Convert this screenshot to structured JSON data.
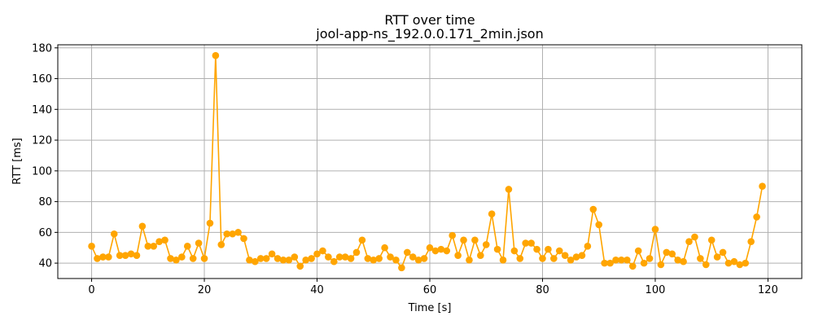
{
  "chart_data": {
    "type": "line",
    "title": "RTT over time",
    "subtitle": "jool-app-ns_192.0.0.171_2min.json",
    "xlabel": "Time [s]",
    "ylabel": "RTT [ms]",
    "xlim": [
      -6,
      126
    ],
    "ylim": [
      30,
      182
    ],
    "xticks": [
      0,
      20,
      40,
      60,
      80,
      100,
      120
    ],
    "yticks": [
      40,
      60,
      80,
      100,
      120,
      140,
      160,
      180
    ],
    "xtick_labels": [
      "0",
      "20",
      "40",
      "60",
      "80",
      "100",
      "120"
    ],
    "ytick_labels": [
      "40",
      "60",
      "80",
      "100",
      "120",
      "140",
      "160",
      "180"
    ],
    "grid": true,
    "marker": "circle",
    "series": [
      {
        "color": "#ffa500",
        "x": [
          0,
          1,
          2,
          3,
          4,
          5,
          6,
          7,
          8,
          9,
          10,
          11,
          12,
          13,
          14,
          15,
          16,
          17,
          18,
          19,
          20,
          21,
          22,
          23,
          24,
          25,
          26,
          27,
          28,
          29,
          30,
          31,
          32,
          33,
          34,
          35,
          36,
          37,
          38,
          39,
          40,
          41,
          42,
          43,
          44,
          45,
          46,
          47,
          48,
          49,
          50,
          51,
          52,
          53,
          54,
          55,
          56,
          57,
          58,
          59,
          60,
          61,
          62,
          63,
          64,
          65,
          66,
          67,
          68,
          69,
          70,
          71,
          72,
          73,
          74,
          75,
          76,
          77,
          78,
          79,
          80,
          81,
          82,
          83,
          84,
          85,
          86,
          87,
          88,
          89,
          90,
          91,
          92,
          93,
          94,
          95,
          96,
          97,
          98,
          99,
          100,
          101,
          102,
          103,
          104,
          105,
          106,
          107,
          108,
          109,
          110,
          111,
          112,
          113,
          114,
          115,
          116,
          117,
          118,
          119
        ],
        "y": [
          51,
          43,
          44,
          44,
          59,
          45,
          45,
          46,
          45,
          64,
          51,
          51,
          54,
          55,
          43,
          42,
          44,
          51,
          43,
          53,
          43,
          66,
          175,
          52,
          59,
          59,
          60,
          56,
          42,
          41,
          43,
          43,
          46,
          43,
          42,
          42,
          44,
          38,
          42,
          43,
          46,
          48,
          44,
          41,
          44,
          44,
          43,
          47,
          55,
          43,
          42,
          43,
          50,
          44,
          42,
          37,
          47,
          44,
          42,
          43,
          50,
          48,
          49,
          48,
          58,
          45,
          55,
          42,
          55,
          45,
          52,
          72,
          49,
          42,
          88,
          48,
          43,
          53,
          53,
          49,
          43,
          49,
          43,
          48,
          45,
          42,
          44,
          45,
          51,
          75,
          65,
          40,
          40,
          42,
          42,
          42,
          38,
          48,
          40,
          43,
          62,
          39,
          47,
          46,
          42,
          41,
          54,
          57,
          43,
          39,
          55,
          44,
          47,
          40,
          41,
          39,
          40,
          54,
          70,
          90
        ]
      }
    ]
  }
}
